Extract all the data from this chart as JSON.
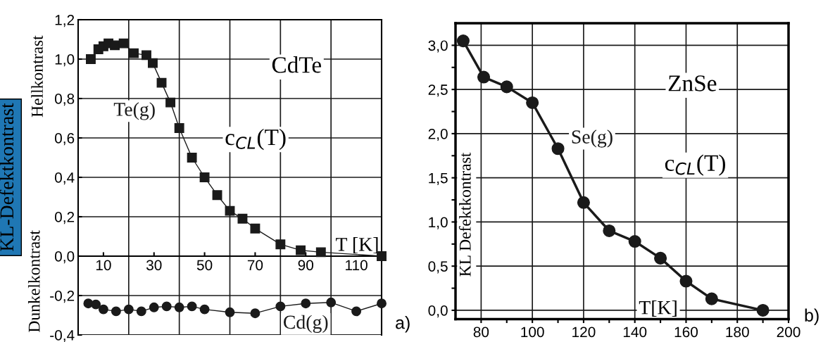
{
  "chart_data": [
    {
      "type": "line",
      "ylabel": "KL-Defektkontrast",
      "xlabel": "T [K]",
      "grid": "y",
      "line_style": "solid",
      "annotations": [
        "CdTe",
        "c$_{CL}$(T)",
        "Hellkontrast",
        "Dunkelkontrast",
        "a)"
      ],
      "xlim": [
        0,
        120
      ],
      "ylim": [
        -0.4,
        1.2
      ],
      "xticks": [
        10,
        30,
        50,
        70,
        90,
        110
      ],
      "yticks": [
        {
          "value": -0.4,
          "label": "-0,4"
        },
        {
          "value": -0.2,
          "label": "-0,2"
        },
        {
          "value": 0.0,
          "label": "0,0"
        },
        {
          "value": 0.2,
          "label": "0,2"
        },
        {
          "value": 0.4,
          "label": "0,4"
        },
        {
          "value": 0.6,
          "label": "0,6"
        },
        {
          "value": 0.8,
          "label": "0,8"
        },
        {
          "value": 1.0,
          "label": "1,0"
        },
        {
          "value": 1.2,
          "label": "1,2"
        }
      ],
      "ref_lines": [
        {
          "axis": "x",
          "value": 20,
          "color": "#1a1a1a"
        },
        {
          "axis": "x",
          "value": 40,
          "color": "#1a1a1a"
        },
        {
          "axis": "x",
          "value": 60,
          "color": "#1a1a1a"
        },
        {
          "axis": "x",
          "value": 80,
          "color": "#1a1a1a"
        },
        {
          "axis": "x",
          "value": 100,
          "color": "#1a1a1a"
        }
      ],
      "series": [
        {
          "name": "Te(g)",
          "color": "#1a1a1a",
          "marker": "square",
          "x": [
            5,
            8,
            10,
            12,
            14.5,
            18,
            22,
            27,
            29.5,
            33,
            36.5,
            40,
            45,
            50,
            55,
            60,
            65,
            70,
            80,
            88,
            96,
            120
          ],
          "values": [
            1.0,
            1.05,
            1.065,
            1.08,
            1.07,
            1.08,
            1.03,
            1.02,
            0.98,
            0.88,
            0.78,
            0.65,
            0.5,
            0.4,
            0.31,
            0.23,
            0.19,
            0.14,
            0.06,
            0.03,
            0.02,
            0.0
          ]
        },
        {
          "name": "Cd(g)",
          "color": "#1a1a1a",
          "marker": "circle",
          "x": [
            4,
            7,
            10,
            15,
            20,
            25,
            30,
            35,
            40,
            45,
            50,
            60,
            70,
            80,
            90,
            100,
            110,
            120
          ],
          "values": [
            -0.24,
            -0.245,
            -0.27,
            -0.28,
            -0.27,
            -0.28,
            -0.26,
            -0.255,
            -0.26,
            -0.255,
            -0.27,
            -0.285,
            -0.29,
            -0.255,
            -0.24,
            -0.235,
            -0.28,
            -0.24
          ]
        }
      ]
    },
    {
      "type": "line",
      "ylabel": "KL Defektkontrast",
      "xlabel": "T[K]",
      "grid": true,
      "line_style": "solid",
      "annotations": [
        "ZnSe",
        "c$_{CL}$(T)",
        "b)"
      ],
      "xlim": [
        70,
        200
      ],
      "ylim": [
        -0.1,
        3.25
      ],
      "xticks": [
        80,
        {
          "value": 90,
          "label": null
        },
        100,
        {
          "value": 110,
          "label": null
        },
        120,
        {
          "value": 130,
          "label": null
        },
        140,
        {
          "value": 150,
          "label": null
        },
        160,
        {
          "value": 170,
          "label": null
        },
        180,
        {
          "value": 190,
          "label": null
        },
        200
      ],
      "yticks": [
        {
          "value": 0.0,
          "label": "0,0"
        },
        {
          "value": 0.25,
          "label": null
        },
        {
          "value": 0.5,
          "label": "0,5"
        },
        {
          "value": 0.75,
          "label": null
        },
        {
          "value": 1.0,
          "label": "1,0"
        },
        {
          "value": 1.25,
          "label": null
        },
        {
          "value": 1.5,
          "label": "1,5"
        },
        {
          "value": 1.75,
          "label": null
        },
        {
          "value": 2.0,
          "label": "2,0"
        },
        {
          "value": 2.25,
          "label": null
        },
        {
          "value": 2.5,
          "label": "2,5"
        },
        {
          "value": 2.75,
          "label": null
        },
        {
          "value": 3.0,
          "label": "3,0"
        }
      ],
      "series": [
        {
          "name": "Se(g)",
          "color": "#1a1a1a",
          "marker": "circle",
          "x": [
            73,
            81,
            90,
            100,
            110,
            120,
            130,
            140,
            150,
            160,
            170,
            190
          ],
          "values": [
            3.05,
            2.64,
            2.53,
            2.35,
            1.83,
            1.22,
            0.9,
            0.78,
            0.59,
            0.33,
            0.13,
            0.0
          ]
        }
      ]
    }
  ]
}
